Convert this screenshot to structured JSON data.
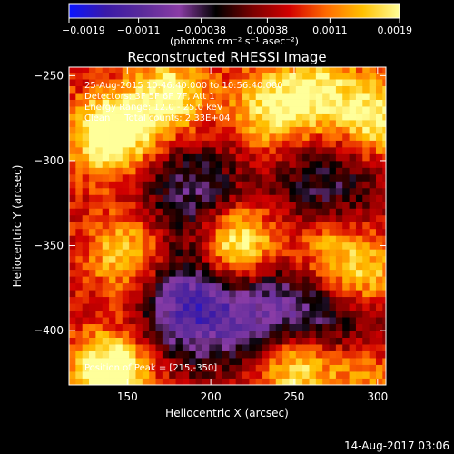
{
  "colorbar": {
    "tick_labels": [
      "-0.0019",
      "-0.0011",
      "-0.00038",
      "0.00038",
      "0.0011",
      "0.0019"
    ],
    "unit_label": "(photons cm⁻² s⁻¹ asec⁻²)",
    "range": [
      -0.0019,
      0.0019
    ],
    "colors": [
      "#0a14ff",
      "#3a1aa8",
      "#5b2b9a",
      "#8a3ca6",
      "#000000",
      "#7a0000",
      "#d20000",
      "#ff6a00",
      "#ffc000",
      "#ffff9a"
    ]
  },
  "footer_timestamp": "14-Aug-2017 03:06",
  "chart_data": {
    "type": "heatmap",
    "title": "Reconstructed RHESSI Image",
    "xlabel": "Heliocentric X (arcsec)",
    "ylabel": "Heliocentric Y (arcsec)",
    "xlim": [
      115,
      305
    ],
    "ylim": [
      -432,
      -245
    ],
    "x_ticks": [
      150,
      200,
      250,
      300
    ],
    "y_ticks": [
      -250,
      -300,
      -350,
      -400
    ],
    "x_tick_labels": [
      "150",
      "200",
      "250",
      "300"
    ],
    "y_tick_labels": [
      "−250",
      "−300",
      "−350",
      "−400"
    ],
    "annotations": [
      "25-Aug-2015 10:46:40.000 to 10:56:40.000",
      "Detectors: 3F 5F 6F 7F, Att 1",
      "Energy Range: 12.0 - 25.0 keV",
      "Clean     Total counts: 2.33E+04"
    ],
    "peak_label": "Position of Peak = [215,-350]",
    "peak": [
      215,
      -350
    ],
    "sources": [
      {
        "x": 140,
        "y": -284,
        "value": 0.0019
      },
      {
        "x": 175,
        "y": -262,
        "value": 0.0014
      },
      {
        "x": 235,
        "y": -270,
        "value": 0.0012
      },
      {
        "x": 265,
        "y": -260,
        "value": 0.0012
      },
      {
        "x": 300,
        "y": -275,
        "value": 0.0013
      },
      {
        "x": 215,
        "y": -350,
        "value": 0.0019
      },
      {
        "x": 150,
        "y": -355,
        "value": 0.0012
      },
      {
        "x": 270,
        "y": -350,
        "value": 0.0011
      },
      {
        "x": 295,
        "y": -370,
        "value": 0.0011
      },
      {
        "x": 140,
        "y": -425,
        "value": 0.0019
      },
      {
        "x": 250,
        "y": -420,
        "value": 0.0016
      },
      {
        "x": 290,
        "y": -422,
        "value": 0.0011
      },
      {
        "x": 190,
        "y": -320,
        "value": -0.0011
      },
      {
        "x": 270,
        "y": -318,
        "value": -0.001
      },
      {
        "x": 190,
        "y": -385,
        "value": -0.0019
      },
      {
        "x": 240,
        "y": -390,
        "value": -0.0014
      },
      {
        "x": 285,
        "y": -400,
        "value": -0.001
      }
    ]
  }
}
